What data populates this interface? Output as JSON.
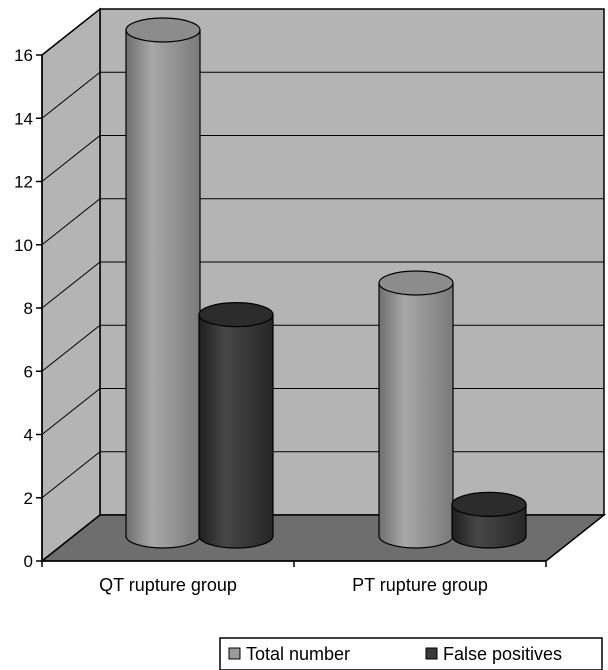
{
  "chart_data": {
    "type": "bar",
    "style": "3d-cylinder",
    "categories": [
      "QT rupture group",
      "PT rupture group"
    ],
    "series": [
      {
        "name": "Total number",
        "values": [
          16,
          8
        ],
        "color": "#9a9a9a"
      },
      {
        "name": "False positives",
        "values": [
          7,
          1
        ],
        "color": "#3a3a3a"
      }
    ],
    "ylim": [
      0,
      16
    ],
    "yticks": [
      "0",
      "2",
      "4",
      "6",
      "8",
      "10",
      "12",
      "14",
      "16"
    ],
    "grid": true,
    "legend_position": "bottom",
    "colors": {
      "wall": "#b4b4b4",
      "floor": "#6e6e6e",
      "gridline": "#000000"
    }
  }
}
